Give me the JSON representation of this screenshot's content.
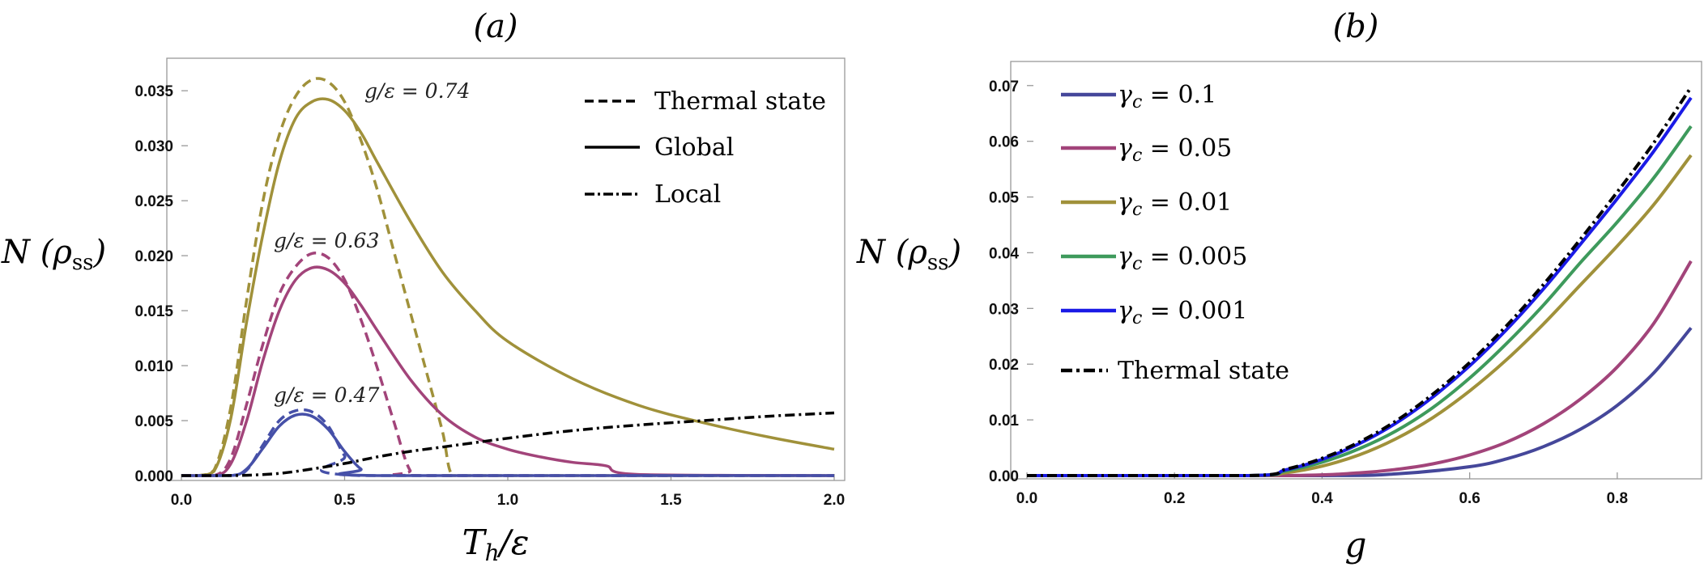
{
  "chart_data": [
    {
      "type": "line",
      "panel_label": "(a)",
      "xlabel": "T_h/ε",
      "ylabel": "N (ρ_ss)",
      "xlim": [
        0.0,
        2.0
      ],
      "ylim": [
        0.0,
        0.037
      ],
      "x_ticks": [
        "0.0",
        "0.5",
        "1.0",
        "1.5",
        "2.0"
      ],
      "y_ticks": [
        "0.000",
        "0.005",
        "0.010",
        "0.015",
        "0.020",
        "0.025",
        "0.030",
        "0.035"
      ],
      "legend": [
        {
          "label": "Thermal state",
          "style": "dashed"
        },
        {
          "label": "Global",
          "style": "solid"
        },
        {
          "label": "Local",
          "style": "dashdot"
        }
      ],
      "annotations": [
        "g/ε = 0.74",
        "g/ε = 0.63",
        "g/ε = 0.47"
      ],
      "series": [
        {
          "name": "g/ε = 0.74 thermal",
          "group": "0.74",
          "style": "dashed",
          "color": "#a0913a",
          "x": [
            0.0,
            0.05,
            0.1,
            0.15,
            0.2,
            0.25,
            0.3,
            0.35,
            0.4,
            0.45,
            0.5,
            0.55,
            0.6,
            0.65,
            0.7,
            0.75,
            0.8,
            0.83,
            0.9,
            2.0
          ],
          "y": [
            0.0,
            0.0,
            0.0005,
            0.006,
            0.016,
            0.025,
            0.031,
            0.0345,
            0.036,
            0.0358,
            0.034,
            0.0305,
            0.026,
            0.0205,
            0.015,
            0.0095,
            0.004,
            0.0,
            0.0,
            0.0
          ]
        },
        {
          "name": "g/ε = 0.74 global",
          "group": "0.74",
          "style": "solid",
          "color": "#a0913a",
          "x": [
            0.0,
            0.05,
            0.1,
            0.15,
            0.2,
            0.25,
            0.3,
            0.35,
            0.4,
            0.45,
            0.5,
            0.55,
            0.6,
            0.7,
            0.8,
            0.9,
            1.0,
            1.2,
            1.4,
            1.6,
            1.8,
            2.0
          ],
          "y": [
            0.0,
            0.0,
            0.0004,
            0.005,
            0.014,
            0.022,
            0.0285,
            0.0325,
            0.034,
            0.0342,
            0.0332,
            0.0312,
            0.0285,
            0.0232,
            0.0185,
            0.015,
            0.0122,
            0.0088,
            0.0064,
            0.0048,
            0.0035,
            0.0024
          ]
        },
        {
          "name": "g/ε = 0.63 thermal",
          "group": "0.63",
          "style": "dashed",
          "color": "#a2447a",
          "x": [
            0.0,
            0.1,
            0.15,
            0.2,
            0.25,
            0.3,
            0.35,
            0.4,
            0.45,
            0.5,
            0.55,
            0.6,
            0.65,
            0.7,
            0.75,
            2.0
          ],
          "y": [
            0.0,
            0.0,
            0.0015,
            0.0065,
            0.012,
            0.0165,
            0.019,
            0.0202,
            0.0198,
            0.0178,
            0.0142,
            0.0098,
            0.005,
            0.0005,
            0.0,
            0.0
          ]
        },
        {
          "name": "g/ε = 0.63 global",
          "group": "0.63",
          "style": "solid",
          "color": "#a2447a",
          "x": [
            0.0,
            0.1,
            0.15,
            0.2,
            0.25,
            0.3,
            0.35,
            0.4,
            0.45,
            0.5,
            0.55,
            0.6,
            0.7,
            0.8,
            0.9,
            1.0,
            1.1,
            1.2,
            1.3,
            1.4,
            2.0
          ],
          "y": [
            0.0,
            0.0,
            0.001,
            0.005,
            0.0105,
            0.015,
            0.0178,
            0.0189,
            0.0187,
            0.0175,
            0.0155,
            0.0132,
            0.0088,
            0.0055,
            0.0035,
            0.0024,
            0.0017,
            0.0012,
            0.0009,
            0.0001,
            0.0
          ]
        },
        {
          "name": "g/ε = 0.47 thermal",
          "group": "0.47",
          "style": "dashed",
          "color": "#4650a8",
          "x": [
            0.0,
            0.15,
            0.2,
            0.25,
            0.3,
            0.35,
            0.4,
            0.45,
            0.5,
            0.55,
            2.0
          ],
          "y": [
            0.0,
            0.0,
            0.0005,
            0.0028,
            0.005,
            0.0059,
            0.0058,
            0.0045,
            0.0018,
            0.0,
            0.0
          ]
        },
        {
          "name": "g/ε = 0.47 global",
          "group": "0.47",
          "style": "solid",
          "color": "#4650a8",
          "x": [
            0.0,
            0.15,
            0.2,
            0.25,
            0.3,
            0.35,
            0.4,
            0.45,
            0.5,
            0.55,
            0.6,
            2.0
          ],
          "y": [
            0.0,
            0.0,
            0.0006,
            0.0025,
            0.0045,
            0.0055,
            0.0054,
            0.0042,
            0.0022,
            0.0006,
            0.0,
            0.0
          ]
        },
        {
          "name": "Local",
          "group": "local",
          "style": "dashdot",
          "color": "#000000",
          "x": [
            0.0,
            0.1,
            0.2,
            0.3,
            0.4,
            0.5,
            0.6,
            0.7,
            0.8,
            0.9,
            1.0,
            1.2,
            1.4,
            1.6,
            1.8,
            2.0
          ],
          "y": [
            0.0,
            0.0,
            3e-05,
            0.0002,
            0.0006,
            0.0011,
            0.0017,
            0.0022,
            0.0026,
            0.003,
            0.0034,
            0.0041,
            0.0046,
            0.005,
            0.0054,
            0.0057
          ]
        }
      ]
    },
    {
      "type": "line",
      "panel_label": "(b)",
      "xlabel": "g",
      "ylabel": "N (ρ_ss)",
      "xlim": [
        0.0,
        0.9
      ],
      "ylim": [
        0.0,
        0.072
      ],
      "x_ticks": [
        "0.0",
        "0.2",
        "0.4",
        "0.6",
        "0.8"
      ],
      "y_ticks": [
        "0.00",
        "0.01",
        "0.02",
        "0.03",
        "0.04",
        "0.05",
        "0.06",
        "0.07"
      ],
      "legend": [
        {
          "label": "γc = 0.1",
          "style": "solid",
          "color": "#45479a"
        },
        {
          "label": "γc = 0.05",
          "style": "solid",
          "color": "#a2447a"
        },
        {
          "label": "γc = 0.01",
          "style": "solid",
          "color": "#a0913a"
        },
        {
          "label": "γc = 0.005",
          "style": "solid",
          "color": "#3e9a5c"
        },
        {
          "label": "γc = 0.001",
          "style": "solid",
          "color": "#1a1ae6"
        },
        {
          "label": "Thermal state",
          "style": "dashdot",
          "color": "#000000"
        }
      ],
      "series": [
        {
          "name": "γc = 0.1",
          "style": "solid",
          "color": "#45479a",
          "x": [
            0.0,
            0.4,
            0.5,
            0.6,
            0.65,
            0.7,
            0.75,
            0.8,
            0.85,
            0.9
          ],
          "y": [
            0.0,
            0.0,
            0.0003,
            0.0016,
            0.003,
            0.0052,
            0.0083,
            0.0126,
            0.0185,
            0.0265
          ]
        },
        {
          "name": "γc = 0.05",
          "style": "solid",
          "color": "#a2447a",
          "x": [
            0.0,
            0.35,
            0.45,
            0.5,
            0.55,
            0.6,
            0.65,
            0.7,
            0.75,
            0.8,
            0.85,
            0.9
          ],
          "y": [
            0.0,
            0.0,
            0.0005,
            0.0011,
            0.0021,
            0.0037,
            0.006,
            0.0093,
            0.0137,
            0.0195,
            0.0274,
            0.0385
          ]
        },
        {
          "name": "γc = 0.01",
          "style": "solid",
          "color": "#a0913a",
          "x": [
            0.0,
            0.3,
            0.35,
            0.4,
            0.45,
            0.5,
            0.55,
            0.6,
            0.65,
            0.7,
            0.75,
            0.8,
            0.85,
            0.9
          ],
          "y": [
            0.0,
            0.0,
            0.0005,
            0.0017,
            0.0037,
            0.0066,
            0.0104,
            0.0152,
            0.0208,
            0.0272,
            0.0342,
            0.0412,
            0.0487,
            0.0575
          ]
        },
        {
          "name": "γc = 0.005",
          "style": "solid",
          "color": "#3e9a5c",
          "x": [
            0.0,
            0.3,
            0.35,
            0.4,
            0.45,
            0.5,
            0.55,
            0.6,
            0.65,
            0.7,
            0.75,
            0.8,
            0.85,
            0.9
          ],
          "y": [
            0.0,
            0.0,
            0.0008,
            0.0024,
            0.0048,
            0.008,
            0.0122,
            0.0175,
            0.0237,
            0.0306,
            0.0382,
            0.0455,
            0.0535,
            0.0627
          ]
        },
        {
          "name": "γc = 0.001",
          "style": "solid",
          "color": "#1a1ae6",
          "x": [
            0.0,
            0.3,
            0.35,
            0.4,
            0.45,
            0.5,
            0.55,
            0.6,
            0.65,
            0.7,
            0.75,
            0.8,
            0.85,
            0.9
          ],
          "y": [
            0.0,
            0.0,
            0.001,
            0.0029,
            0.0057,
            0.0094,
            0.0141,
            0.0197,
            0.0262,
            0.0335,
            0.0415,
            0.0497,
            0.0583,
            0.0678
          ]
        },
        {
          "name": "Thermal state",
          "style": "dashdot",
          "color": "#000000",
          "x": [
            0.0,
            0.3,
            0.35,
            0.4,
            0.45,
            0.5,
            0.55,
            0.6,
            0.65,
            0.7,
            0.75,
            0.8,
            0.85,
            0.9
          ],
          "y": [
            0.0,
            0.0,
            0.0011,
            0.0031,
            0.006,
            0.0098,
            0.0146,
            0.0203,
            0.0269,
            0.0343,
            0.0424,
            0.0509,
            0.0598,
            0.0697
          ]
        }
      ]
    }
  ]
}
